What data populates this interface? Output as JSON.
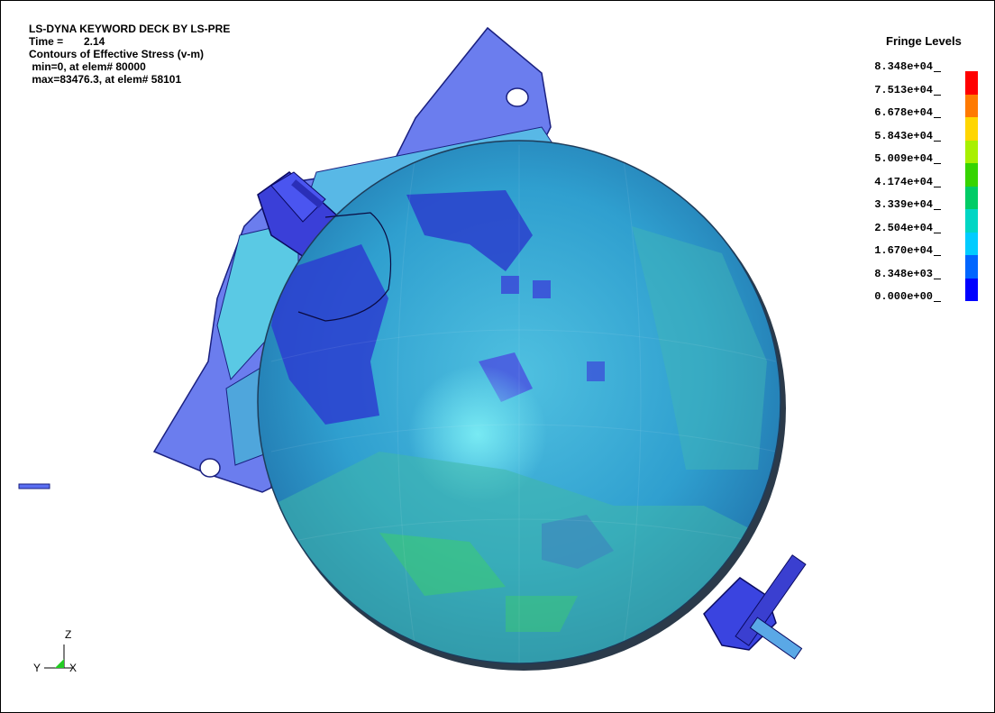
{
  "header": {
    "title": "LS-DYNA KEYWORD DECK BY LS-PRE",
    "time_label": "Time =",
    "time_value": "2.14",
    "contour_label": "Contours of Effective Stress (v-m)",
    "min_text": " min=0, at elem# 80000",
    "max_text": " max=83476.3, at elem# 58101"
  },
  "legend": {
    "title": "Fringe Levels",
    "levels": [
      "8.348e+04",
      "7.513e+04",
      "6.678e+04",
      "5.843e+04",
      "5.009e+04",
      "4.174e+04",
      "3.339e+04",
      "2.504e+04",
      "1.670e+04",
      "8.348e+03",
      "0.000e+00"
    ],
    "colors": [
      "#ff0000",
      "#ff7a00",
      "#ffd600",
      "#a8f000",
      "#36d400",
      "#00cc66",
      "#00d6c4",
      "#00ccff",
      "#0066ff",
      "#0000ff"
    ]
  },
  "triad": {
    "z": "Z",
    "y": "Y",
    "x": "X"
  }
}
